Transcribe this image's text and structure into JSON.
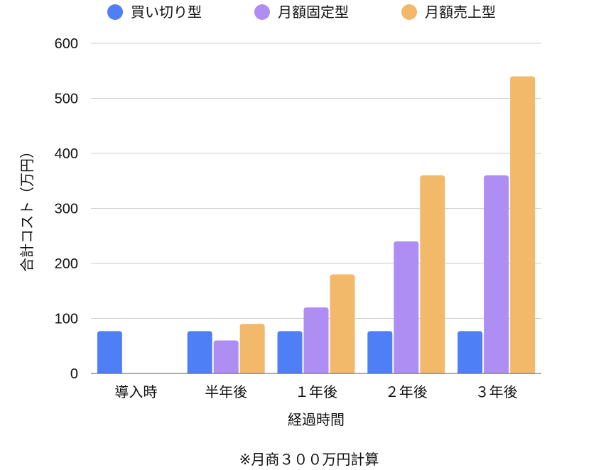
{
  "chart_data": {
    "type": "bar",
    "categories": [
      "導入時",
      "半年後",
      "１年後",
      "２年後",
      "３年後"
    ],
    "series": [
      {
        "name": "買い切り型",
        "color": "#4e7ff6",
        "values": [
          77,
          77,
          77,
          77,
          77
        ]
      },
      {
        "name": "月額固定型",
        "color": "#ae8ef3",
        "values": [
          0,
          60,
          120,
          240,
          360
        ]
      },
      {
        "name": "月額売上型",
        "color": "#f2b96b",
        "values": [
          0,
          90,
          180,
          360,
          540
        ]
      }
    ],
    "xlabel": "経過時間",
    "ylabel": "合計コスト（万円）",
    "ylim": [
      0,
      600
    ],
    "yticks": [
      0,
      100,
      200,
      300,
      400,
      500,
      600
    ],
    "grid": true,
    "legend_position": "top",
    "note": "※月商３００万円計算"
  }
}
